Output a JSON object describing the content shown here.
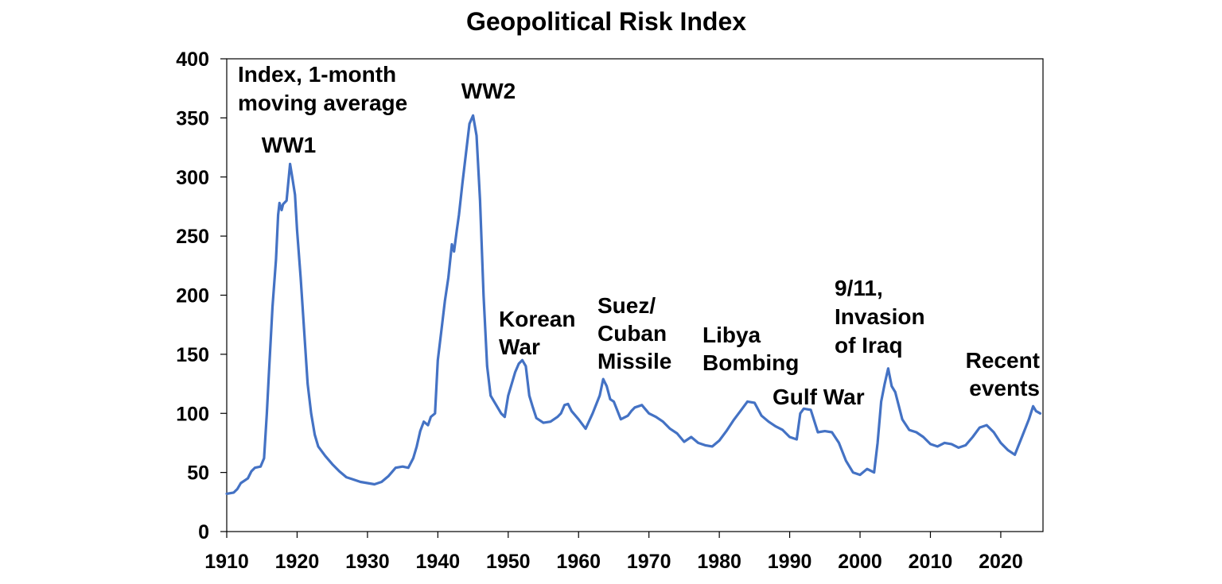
{
  "chart_data": {
    "type": "line",
    "title": "Geopolitical Risk Index",
    "xlabel": "",
    "ylabel": "",
    "xlim": [
      1910,
      2026
    ],
    "ylim": [
      0,
      400
    ],
    "x_ticks": [
      "1910",
      "1920",
      "1930",
      "1940",
      "1950",
      "1960",
      "1970",
      "1980",
      "1990",
      "2000",
      "2010",
      "2020"
    ],
    "y_ticks": [
      "0",
      "50",
      "100",
      "150",
      "200",
      "250",
      "300",
      "350",
      "400"
    ],
    "grid": false,
    "legend": "none",
    "series": [
      {
        "color": "#4472c4",
        "points": [
          [
            1910,
            32
          ],
          [
            1911,
            33
          ],
          [
            1911.5,
            36
          ],
          [
            1912,
            41
          ],
          [
            1913,
            45
          ],
          [
            1913.5,
            51
          ],
          [
            1914,
            54
          ],
          [
            1914.8,
            55
          ],
          [
            1915.3,
            62
          ],
          [
            1915.7,
            100
          ],
          [
            1916,
            135
          ],
          [
            1916.5,
            190
          ],
          [
            1917,
            230
          ],
          [
            1917.3,
            268
          ],
          [
            1917.5,
            278
          ],
          [
            1917.8,
            272
          ],
          [
            1918,
            277
          ],
          [
            1918.5,
            280
          ],
          [
            1919,
            311
          ],
          [
            1919.3,
            300
          ],
          [
            1919.7,
            285
          ],
          [
            1920,
            255
          ],
          [
            1920.5,
            215
          ],
          [
            1921,
            170
          ],
          [
            1921.5,
            125
          ],
          [
            1922,
            100
          ],
          [
            1922.5,
            82
          ],
          [
            1923,
            72
          ],
          [
            1924,
            64
          ],
          [
            1925,
            57
          ],
          [
            1926,
            51
          ],
          [
            1927,
            46
          ],
          [
            1928,
            44
          ],
          [
            1929,
            42
          ],
          [
            1930,
            41
          ],
          [
            1931,
            40
          ],
          [
            1932,
            42
          ],
          [
            1933,
            47
          ],
          [
            1934,
            54
          ],
          [
            1935,
            55
          ],
          [
            1935.8,
            54
          ],
          [
            1936.5,
            62
          ],
          [
            1937,
            72
          ],
          [
            1937.5,
            85
          ],
          [
            1938,
            93
          ],
          [
            1938.6,
            90
          ],
          [
            1939,
            97
          ],
          [
            1939.6,
            100
          ],
          [
            1940,
            145
          ],
          [
            1940.5,
            170
          ],
          [
            1941,
            195
          ],
          [
            1941.5,
            215
          ],
          [
            1942,
            243
          ],
          [
            1942.3,
            237
          ],
          [
            1942.7,
            255
          ],
          [
            1943,
            268
          ],
          [
            1943.5,
            295
          ],
          [
            1944,
            320
          ],
          [
            1944.5,
            345
          ],
          [
            1945,
            352
          ],
          [
            1945.5,
            335
          ],
          [
            1946,
            280
          ],
          [
            1946.5,
            200
          ],
          [
            1947,
            140
          ],
          [
            1947.5,
            115
          ],
          [
            1948,
            110
          ],
          [
            1948.5,
            105
          ],
          [
            1949,
            100
          ],
          [
            1949.5,
            97
          ],
          [
            1950,
            115
          ],
          [
            1950.5,
            125
          ],
          [
            1951,
            135
          ],
          [
            1951.5,
            142
          ],
          [
            1952,
            145
          ],
          [
            1952.5,
            140
          ],
          [
            1953,
            115
          ],
          [
            1953.5,
            105
          ],
          [
            1954,
            96
          ],
          [
            1955,
            92
          ],
          [
            1956,
            93
          ],
          [
            1957,
            97
          ],
          [
            1957.5,
            100
          ],
          [
            1958,
            107
          ],
          [
            1958.5,
            108
          ],
          [
            1959,
            102
          ],
          [
            1960,
            95
          ],
          [
            1961,
            87
          ],
          [
            1962,
            100
          ],
          [
            1963,
            115
          ],
          [
            1963.5,
            129
          ],
          [
            1964,
            123
          ],
          [
            1964.5,
            112
          ],
          [
            1965,
            110
          ],
          [
            1966,
            95
          ],
          [
            1967,
            98
          ],
          [
            1967.5,
            102
          ],
          [
            1968,
            105
          ],
          [
            1969,
            107
          ],
          [
            1970,
            100
          ],
          [
            1971,
            97
          ],
          [
            1972,
            93
          ],
          [
            1973,
            87
          ],
          [
            1974,
            83
          ],
          [
            1975,
            76
          ],
          [
            1976,
            80
          ],
          [
            1977,
            75
          ],
          [
            1978,
            73
          ],
          [
            1979,
            72
          ],
          [
            1980,
            77
          ],
          [
            1981,
            85
          ],
          [
            1982,
            94
          ],
          [
            1983,
            102
          ],
          [
            1984,
            110
          ],
          [
            1985,
            109
          ],
          [
            1986,
            98
          ],
          [
            1987,
            93
          ],
          [
            1988,
            89
          ],
          [
            1989,
            86
          ],
          [
            1990,
            80
          ],
          [
            1991,
            78
          ],
          [
            1991.5,
            100
          ],
          [
            1992,
            104
          ],
          [
            1993,
            103
          ],
          [
            1994,
            84
          ],
          [
            1995,
            85
          ],
          [
            1996,
            84
          ],
          [
            1997,
            75
          ],
          [
            1998,
            60
          ],
          [
            1999,
            50
          ],
          [
            2000,
            48
          ],
          [
            2001,
            53
          ],
          [
            2002,
            50
          ],
          [
            2002.5,
            75
          ],
          [
            2003,
            110
          ],
          [
            2003.5,
            125
          ],
          [
            2004,
            138
          ],
          [
            2004.5,
            123
          ],
          [
            2005,
            118
          ],
          [
            2006,
            95
          ],
          [
            2007,
            86
          ],
          [
            2008,
            84
          ],
          [
            2009,
            80
          ],
          [
            2010,
            74
          ],
          [
            2011,
            72
          ],
          [
            2012,
            75
          ],
          [
            2013,
            74
          ],
          [
            2014,
            71
          ],
          [
            2015,
            73
          ],
          [
            2016,
            80
          ],
          [
            2017,
            88
          ],
          [
            2018,
            90
          ],
          [
            2019,
            84
          ],
          [
            2020,
            75
          ],
          [
            2021,
            69
          ],
          [
            2022,
            65
          ],
          [
            2023,
            80
          ],
          [
            2024,
            95
          ],
          [
            2024.6,
            106
          ],
          [
            2025,
            102
          ],
          [
            2025.6,
            100
          ]
        ]
      }
    ],
    "annotations": [
      {
        "lines": [
          "Index, 1-month",
          "moving average"
        ],
        "color": "#000000"
      },
      {
        "lines": [
          "WW1"
        ],
        "color": "#000000"
      },
      {
        "lines": [
          "WW2"
        ],
        "color": "#000000"
      },
      {
        "lines": [
          "Korean",
          "War"
        ],
        "color": "#000000"
      },
      {
        "lines": [
          "Suez/",
          "Cuban",
          "Missile"
        ],
        "color": "#000000"
      },
      {
        "lines": [
          "Libya",
          "Bombing"
        ],
        "color": "#000000"
      },
      {
        "lines": [
          "Gulf War"
        ],
        "color": "#000000"
      },
      {
        "lines": [
          "9/11,",
          "Invasion",
          "of Iraq"
        ],
        "color": "#000000"
      },
      {
        "lines": [
          "Recent",
          "events"
        ],
        "color": "#e00000"
      }
    ]
  }
}
